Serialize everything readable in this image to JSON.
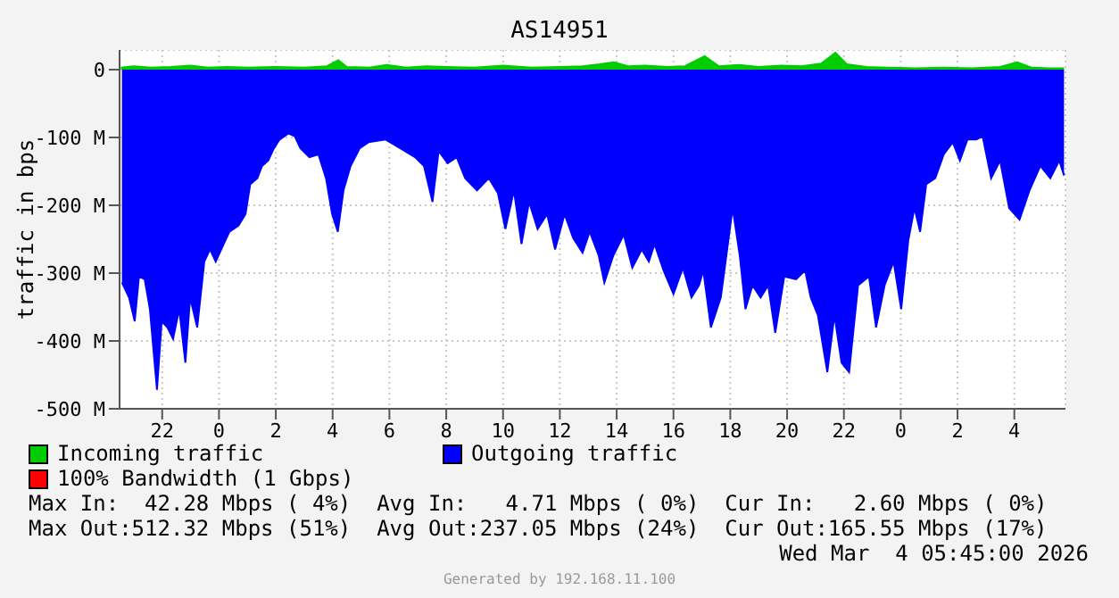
{
  "chart_data": {
    "type": "area",
    "title": "AS14951",
    "ylabel": "traffic in bps",
    "xlim": [
      "2026-03-02T20:30",
      "2026-03-04T05:48"
    ],
    "xticks": [
      {
        "value": "2026-03-02T22:00",
        "label": "22"
      },
      {
        "value": "2026-03-03T00:00",
        "label": "0"
      },
      {
        "value": "2026-03-03T02:00",
        "label": "2"
      },
      {
        "value": "2026-03-03T04:00",
        "label": "4"
      },
      {
        "value": "2026-03-03T06:00",
        "label": "6"
      },
      {
        "value": "2026-03-03T08:00",
        "label": "8"
      },
      {
        "value": "2026-03-03T10:00",
        "label": "10"
      },
      {
        "value": "2026-03-03T12:00",
        "label": "12"
      },
      {
        "value": "2026-03-03T14:00",
        "label": "14"
      },
      {
        "value": "2026-03-03T16:00",
        "label": "16"
      },
      {
        "value": "2026-03-03T18:00",
        "label": "18"
      },
      {
        "value": "2026-03-03T20:00",
        "label": "20"
      },
      {
        "value": "2026-03-03T22:00",
        "label": "22"
      },
      {
        "value": "2026-03-04T00:00",
        "label": "0"
      },
      {
        "value": "2026-03-04T02:00",
        "label": "2"
      },
      {
        "value": "2026-03-04T04:00",
        "label": "4"
      }
    ],
    "ylim": [
      -500,
      29
    ],
    "yticks": [
      {
        "value": -500,
        "label": "-500 M"
      },
      {
        "value": -400,
        "label": "-400 M"
      },
      {
        "value": -300,
        "label": "-300 M"
      },
      {
        "value": -200,
        "label": "-200 M"
      },
      {
        "value": -100,
        "label": "-100 M"
      },
      0
    ],
    "grid": true,
    "legend": "bottom",
    "series": [
      {
        "name": "Incoming traffic",
        "color": "#00cc00",
        "x": [
          "2026-03-02T20:33",
          "2026-03-02T21:00",
          "2026-03-02T21:36",
          "2026-03-02T22:18",
          "2026-03-02T23:00",
          "2026-03-02T23:36",
          "2026-03-03T00:18",
          "2026-03-03T01:00",
          "2026-03-03T02:00",
          "2026-03-03T03:00",
          "2026-03-03T03:48",
          "2026-03-03T04:12",
          "2026-03-03T04:30",
          "2026-03-03T05:18",
          "2026-03-03T05:54",
          "2026-03-03T06:36",
          "2026-03-03T07:18",
          "2026-03-03T08:00",
          "2026-03-03T09:00",
          "2026-03-03T10:00",
          "2026-03-03T11:00",
          "2026-03-03T12:00",
          "2026-03-03T12:48",
          "2026-03-03T13:24",
          "2026-03-03T13:54",
          "2026-03-03T14:24",
          "2026-03-03T15:00",
          "2026-03-03T15:48",
          "2026-03-03T16:24",
          "2026-03-03T17:06",
          "2026-03-03T17:36",
          "2026-03-03T18:18",
          "2026-03-03T19:00",
          "2026-03-03T19:48",
          "2026-03-03T20:30",
          "2026-03-03T21:12",
          "2026-03-03T21:42",
          "2026-03-03T22:06",
          "2026-03-03T22:48",
          "2026-03-03T23:30",
          "2026-03-04T00:30",
          "2026-03-04T01:30",
          "2026-03-04T02:30",
          "2026-03-04T03:30",
          "2026-03-04T04:06",
          "2026-03-04T04:36",
          "2026-03-04T05:12",
          "2026-03-04T05:45"
        ],
        "values": [
          3,
          5,
          3,
          4,
          6,
          3,
          4,
          3,
          4,
          3,
          5,
          14,
          4,
          3,
          7,
          3,
          5,
          4,
          3,
          6,
          3,
          4,
          5,
          8,
          11,
          5,
          6,
          4,
          5,
          20,
          5,
          7,
          4,
          6,
          5,
          9,
          25,
          8,
          4,
          3,
          2,
          3,
          2,
          4,
          11,
          3,
          2,
          2
        ]
      },
      {
        "name": "Outgoing traffic",
        "color": "#0000ff",
        "x": [
          "2026-03-02T20:35",
          "2026-03-02T20:50",
          "2026-03-02T21:02",
          "2026-03-02T21:11",
          "2026-03-02T21:23",
          "2026-03-02T21:34",
          "2026-03-02T21:49",
          "2026-03-02T21:59",
          "2026-03-02T22:11",
          "2026-03-02T22:23",
          "2026-03-02T22:36",
          "2026-03-02T22:49",
          "2026-03-02T22:59",
          "2026-03-02T23:14",
          "2026-03-02T23:29",
          "2026-03-02T23:41",
          "2026-03-02T23:53",
          "2026-03-03T00:10",
          "2026-03-03T00:22",
          "2026-03-03T00:41",
          "2026-03-03T00:56",
          "2026-03-03T01:06",
          "2026-03-03T01:21",
          "2026-03-03T01:31",
          "2026-03-03T01:44",
          "2026-03-03T01:56",
          "2026-03-03T02:08",
          "2026-03-03T02:27",
          "2026-03-03T02:40",
          "2026-03-03T02:52",
          "2026-03-03T03:11",
          "2026-03-03T03:30",
          "2026-03-03T03:46",
          "2026-03-03T03:59",
          "2026-03-03T04:11",
          "2026-03-03T04:23",
          "2026-03-03T04:38",
          "2026-03-03T04:57",
          "2026-03-03T05:16",
          "2026-03-03T05:52",
          "2026-03-03T06:23",
          "2026-03-03T06:54",
          "2026-03-03T07:13",
          "2026-03-03T07:31",
          "2026-03-03T07:44",
          "2026-03-03T08:03",
          "2026-03-03T08:22",
          "2026-03-03T08:40",
          "2026-03-03T09:05",
          "2026-03-03T09:30",
          "2026-03-03T09:49",
          "2026-03-03T10:05",
          "2026-03-03T10:23",
          "2026-03-03T10:39",
          "2026-03-03T10:55",
          "2026-03-03T11:13",
          "2026-03-03T11:33",
          "2026-03-03T11:50",
          "2026-03-03T12:10",
          "2026-03-03T12:28",
          "2026-03-03T12:48",
          "2026-03-03T13:03",
          "2026-03-03T13:22",
          "2026-03-03T13:34",
          "2026-03-03T13:53",
          "2026-03-03T14:15",
          "2026-03-03T14:33",
          "2026-03-03T14:53",
          "2026-03-03T15:08",
          "2026-03-03T15:20",
          "2026-03-03T15:39",
          "2026-03-03T16:00",
          "2026-03-03T16:20",
          "2026-03-03T16:38",
          "2026-03-03T16:54",
          "2026-03-03T17:03",
          "2026-03-03T17:19",
          "2026-03-03T17:40",
          "2026-03-03T18:05",
          "2026-03-03T18:20",
          "2026-03-03T18:32",
          "2026-03-03T18:47",
          "2026-03-03T19:04",
          "2026-03-03T19:20",
          "2026-03-03T19:35",
          "2026-03-03T19:54",
          "2026-03-03T20:19",
          "2026-03-03T20:38",
          "2026-03-03T20:50",
          "2026-03-03T21:05",
          "2026-03-03T21:25",
          "2026-03-03T21:40",
          "2026-03-03T21:55",
          "2026-03-03T22:11",
          "2026-03-03T22:30",
          "2026-03-03T22:53",
          "2026-03-03T23:08",
          "2026-03-03T23:26",
          "2026-03-03T23:45",
          "2026-03-04T00:01",
          "2026-03-04T00:16",
          "2026-03-04T00:29",
          "2026-03-04T00:41",
          "2026-03-04T00:54",
          "2026-03-04T01:13",
          "2026-03-04T01:31",
          "2026-03-04T01:50",
          "2026-03-04T02:05",
          "2026-03-04T02:21",
          "2026-03-04T02:40",
          "2026-03-04T02:53",
          "2026-03-04T03:11",
          "2026-03-04T03:30",
          "2026-03-04T03:49",
          "2026-03-04T04:11",
          "2026-03-04T04:32",
          "2026-03-04T04:55",
          "2026-03-04T05:16",
          "2026-03-04T05:35",
          "2026-03-04T05:45"
        ],
        "values": [
          -314,
          -336,
          -371,
          -305,
          -309,
          -353,
          -472,
          -371,
          -380,
          -397,
          -353,
          -432,
          -336,
          -380,
          -283,
          -265,
          -283,
          -257,
          -239,
          -230,
          -213,
          -169,
          -160,
          -142,
          -134,
          -116,
          -103,
          -94,
          -98,
          -116,
          -129,
          -125,
          -160,
          -213,
          -239,
          -178,
          -142,
          -116,
          -107,
          -103,
          -116,
          -129,
          -142,
          -195,
          -120,
          -138,
          -129,
          -160,
          -178,
          -160,
          -182,
          -235,
          -178,
          -257,
          -195,
          -235,
          -213,
          -265,
          -213,
          -248,
          -270,
          -239,
          -274,
          -314,
          -274,
          -243,
          -292,
          -265,
          -283,
          -257,
          -296,
          -331,
          -292,
          -336,
          -318,
          -296,
          -380,
          -336,
          -204,
          -274,
          -353,
          -318,
          -336,
          -318,
          -388,
          -305,
          -309,
          -296,
          -336,
          -362,
          -446,
          -362,
          -432,
          -446,
          -318,
          -305,
          -380,
          -318,
          -283,
          -353,
          -252,
          -204,
          -239,
          -169,
          -160,
          -125,
          -107,
          -134,
          -103,
          -103,
          -98,
          -160,
          -134,
          -204,
          -221,
          -178,
          -142,
          -160,
          -134,
          -156
        ]
      },
      {
        "name": "100% Bandwidth (1 Gbps)",
        "color": "#ff0000"
      }
    ],
    "annotations": [
      "Max In:  42.28 Mbps ( 4%)  Avg In:   4.71 Mbps ( 0%)  Cur In:   2.60 Mbps ( 0%)",
      "Max Out:512.32 Mbps (51%)  Avg Out:237.05 Mbps (24%)  Cur Out:165.55 Mbps (17%)",
      "Wed Mar  4 05:45:00 2026",
      "Generated by 192.168.11.100"
    ]
  }
}
